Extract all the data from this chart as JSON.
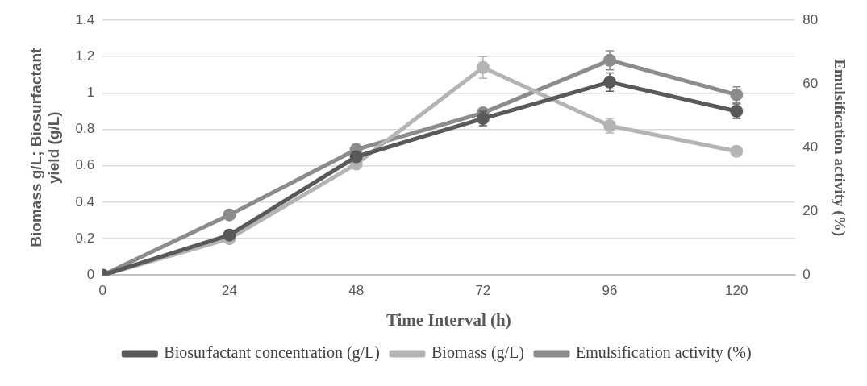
{
  "chart_data": {
    "type": "line",
    "xlabel": "Time Interval (h)",
    "ylabel": "Biomass g/L; Biosurfactant yield (g/L)",
    "y2label": "Emulsification activity (%)",
    "x": [
      0,
      24,
      48,
      72,
      96,
      120
    ],
    "xlim": [
      0,
      131
    ],
    "xticks": [
      0,
      24,
      48,
      72,
      96,
      120
    ],
    "ylim": [
      0,
      1.4
    ],
    "yticks": [
      0,
      0.2,
      0.4,
      0.6,
      0.8,
      1,
      1.2,
      1.4
    ],
    "y2lim": [
      0,
      80
    ],
    "y2ticks": [
      0,
      20,
      40,
      60,
      80
    ],
    "series": [
      {
        "name": "Biosurfactant concentration (g/L)",
        "color": "#595959",
        "values": [
          0,
          0.22,
          0.65,
          0.86,
          1.06,
          0.9
        ],
        "errors": [
          null,
          null,
          null,
          0.04,
          0.05,
          0.04
        ]
      },
      {
        "name": "Biomass (g/L)",
        "color": "#b4b4b4",
        "values": [
          0,
          0.2,
          0.61,
          1.14,
          0.82,
          0.68
        ],
        "errors": [
          null,
          null,
          null,
          0.06,
          0.04,
          null
        ]
      },
      {
        "name": "Emulsification activity (%)",
        "color": "#8c8c8c",
        "axis": "y2",
        "values": [
          0,
          18.9,
          39.4,
          50.9,
          67.4,
          56.6
        ],
        "errors": [
          null,
          null,
          null,
          null,
          3,
          2.5
        ]
      }
    ],
    "grid": "y",
    "legend": "bottom",
    "marker": "circle",
    "line_style": "solid"
  }
}
